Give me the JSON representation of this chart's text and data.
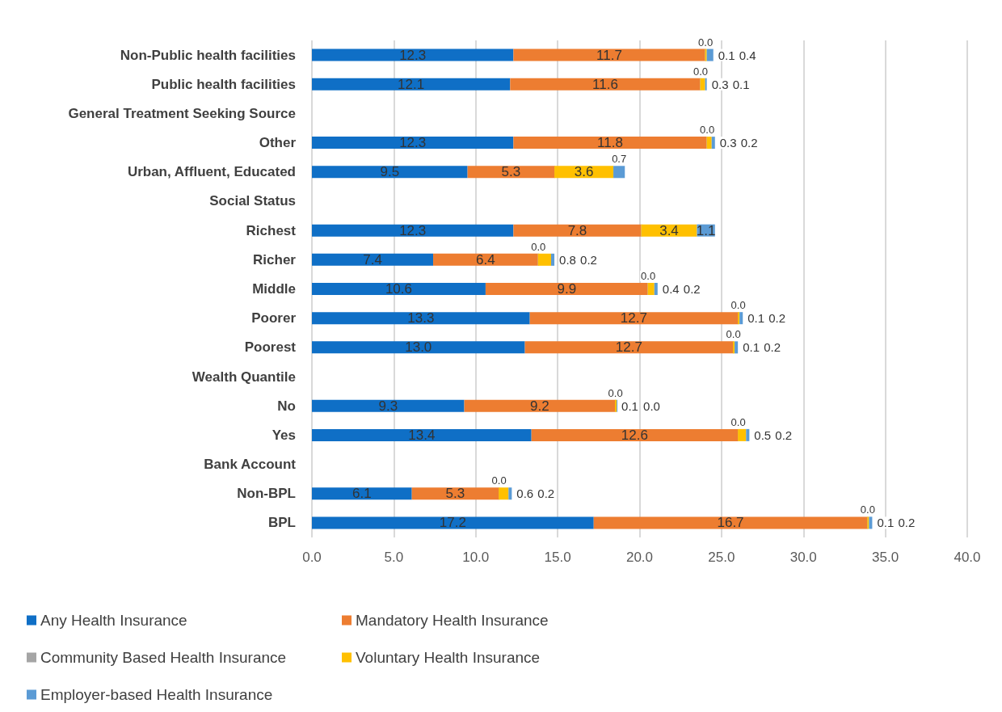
{
  "chart_data": {
    "type": "bar",
    "orientation": "horizontal",
    "stacked": true,
    "categories": [
      "Non-Public health facilities",
      "Public health facilities",
      "General Treatment Seeking Source",
      "Other",
      "Urban, Affluent, Educated",
      "Social Status",
      "Richest",
      "Richer",
      "Middle",
      "Poorer",
      "Poorest",
      "Wealth Quantile",
      "No",
      "Yes",
      "Bank Account",
      "Non-BPL",
      "BPL"
    ],
    "series": [
      {
        "name": "Any Health Insurance",
        "color": "#0f6fc6",
        "values": [
          12.3,
          12.1,
          null,
          12.3,
          9.5,
          null,
          12.3,
          7.4,
          10.6,
          13.3,
          13.0,
          null,
          9.3,
          13.4,
          null,
          6.1,
          17.2
        ],
        "value_labels": [
          "12.3",
          "12.1",
          null,
          "12.3",
          "9.5",
          null,
          "12.3",
          "7.4",
          "10.6",
          "13.3",
          "13.0",
          null,
          "9.3",
          "13.4",
          null,
          "6.1",
          "17.2"
        ]
      },
      {
        "name": "Mandatory Health Insurance",
        "color": "#ed7d31",
        "values": [
          11.7,
          11.6,
          null,
          11.8,
          5.3,
          null,
          7.8,
          6.4,
          9.9,
          12.7,
          12.7,
          null,
          9.2,
          12.6,
          null,
          5.3,
          16.7
        ],
        "value_labels": [
          "11.7",
          "11.6",
          null,
          "11.8",
          "5.3",
          null,
          "7.8",
          "6.4",
          "9.9",
          "12.7",
          "12.7",
          null,
          "9.2",
          "12.6",
          null,
          "5.3",
          "16.7"
        ]
      },
      {
        "name": "Community Based Health Insurance",
        "color": "#a5a5a5",
        "values": [
          0.0,
          0.0,
          null,
          0.0,
          0.0,
          null,
          0.0,
          0.0,
          0.0,
          0.0,
          0.0,
          null,
          0.0,
          0.0,
          null,
          0.0,
          0.0
        ],
        "value_labels": [
          "0.0",
          "0.0",
          null,
          "0.0",
          null,
          null,
          null,
          "0.0",
          "0.0",
          "0.0",
          "0.0",
          null,
          "0.0",
          "0.0",
          null,
          "0.0",
          "0.0"
        ]
      },
      {
        "name": "Voluntary Health Insurance",
        "color": "#ffc000",
        "values": [
          0.1,
          0.3,
          null,
          0.3,
          3.6,
          null,
          3.4,
          0.8,
          0.4,
          0.1,
          0.1,
          null,
          0.1,
          0.5,
          null,
          0.6,
          0.1
        ],
        "value_labels": [
          "0.1",
          "0.3",
          null,
          "0.3",
          "3.6",
          null,
          "3.4",
          "0.8",
          "0.4",
          "0.1",
          "0.1",
          null,
          "0.1",
          "0.5",
          null,
          "0.6",
          "0.1"
        ]
      },
      {
        "name": "Employer-based Health Insurance",
        "color": "#5b9bd5",
        "values": [
          0.4,
          0.1,
          null,
          0.2,
          0.7,
          null,
          1.1,
          0.2,
          0.2,
          0.2,
          0.2,
          null,
          0.0,
          0.2,
          null,
          0.2,
          0.2
        ],
        "value_labels": [
          "0.4",
          "0.1",
          null,
          "0.2",
          "0.7",
          null,
          "1.1",
          "0.2",
          "0.2",
          "0.2",
          "0.2",
          null,
          "0.0",
          "0.2",
          null,
          "0.2",
          "0.2"
        ]
      }
    ],
    "xlim": [
      0,
      40
    ],
    "xticks": [
      {
        "value": 0,
        "label": "0.0"
      },
      {
        "value": 5,
        "label": "5.0"
      },
      {
        "value": 10,
        "label": "10.0"
      },
      {
        "value": 15,
        "label": "15.0"
      },
      {
        "value": 20,
        "label": "20.0"
      },
      {
        "value": 25,
        "label": "25.0"
      },
      {
        "value": 30,
        "label": "30.0"
      },
      {
        "value": 35,
        "label": "35.0"
      },
      {
        "value": 40,
        "label": "40.0"
      }
    ],
    "grid": "x",
    "legend": "bottom"
  }
}
